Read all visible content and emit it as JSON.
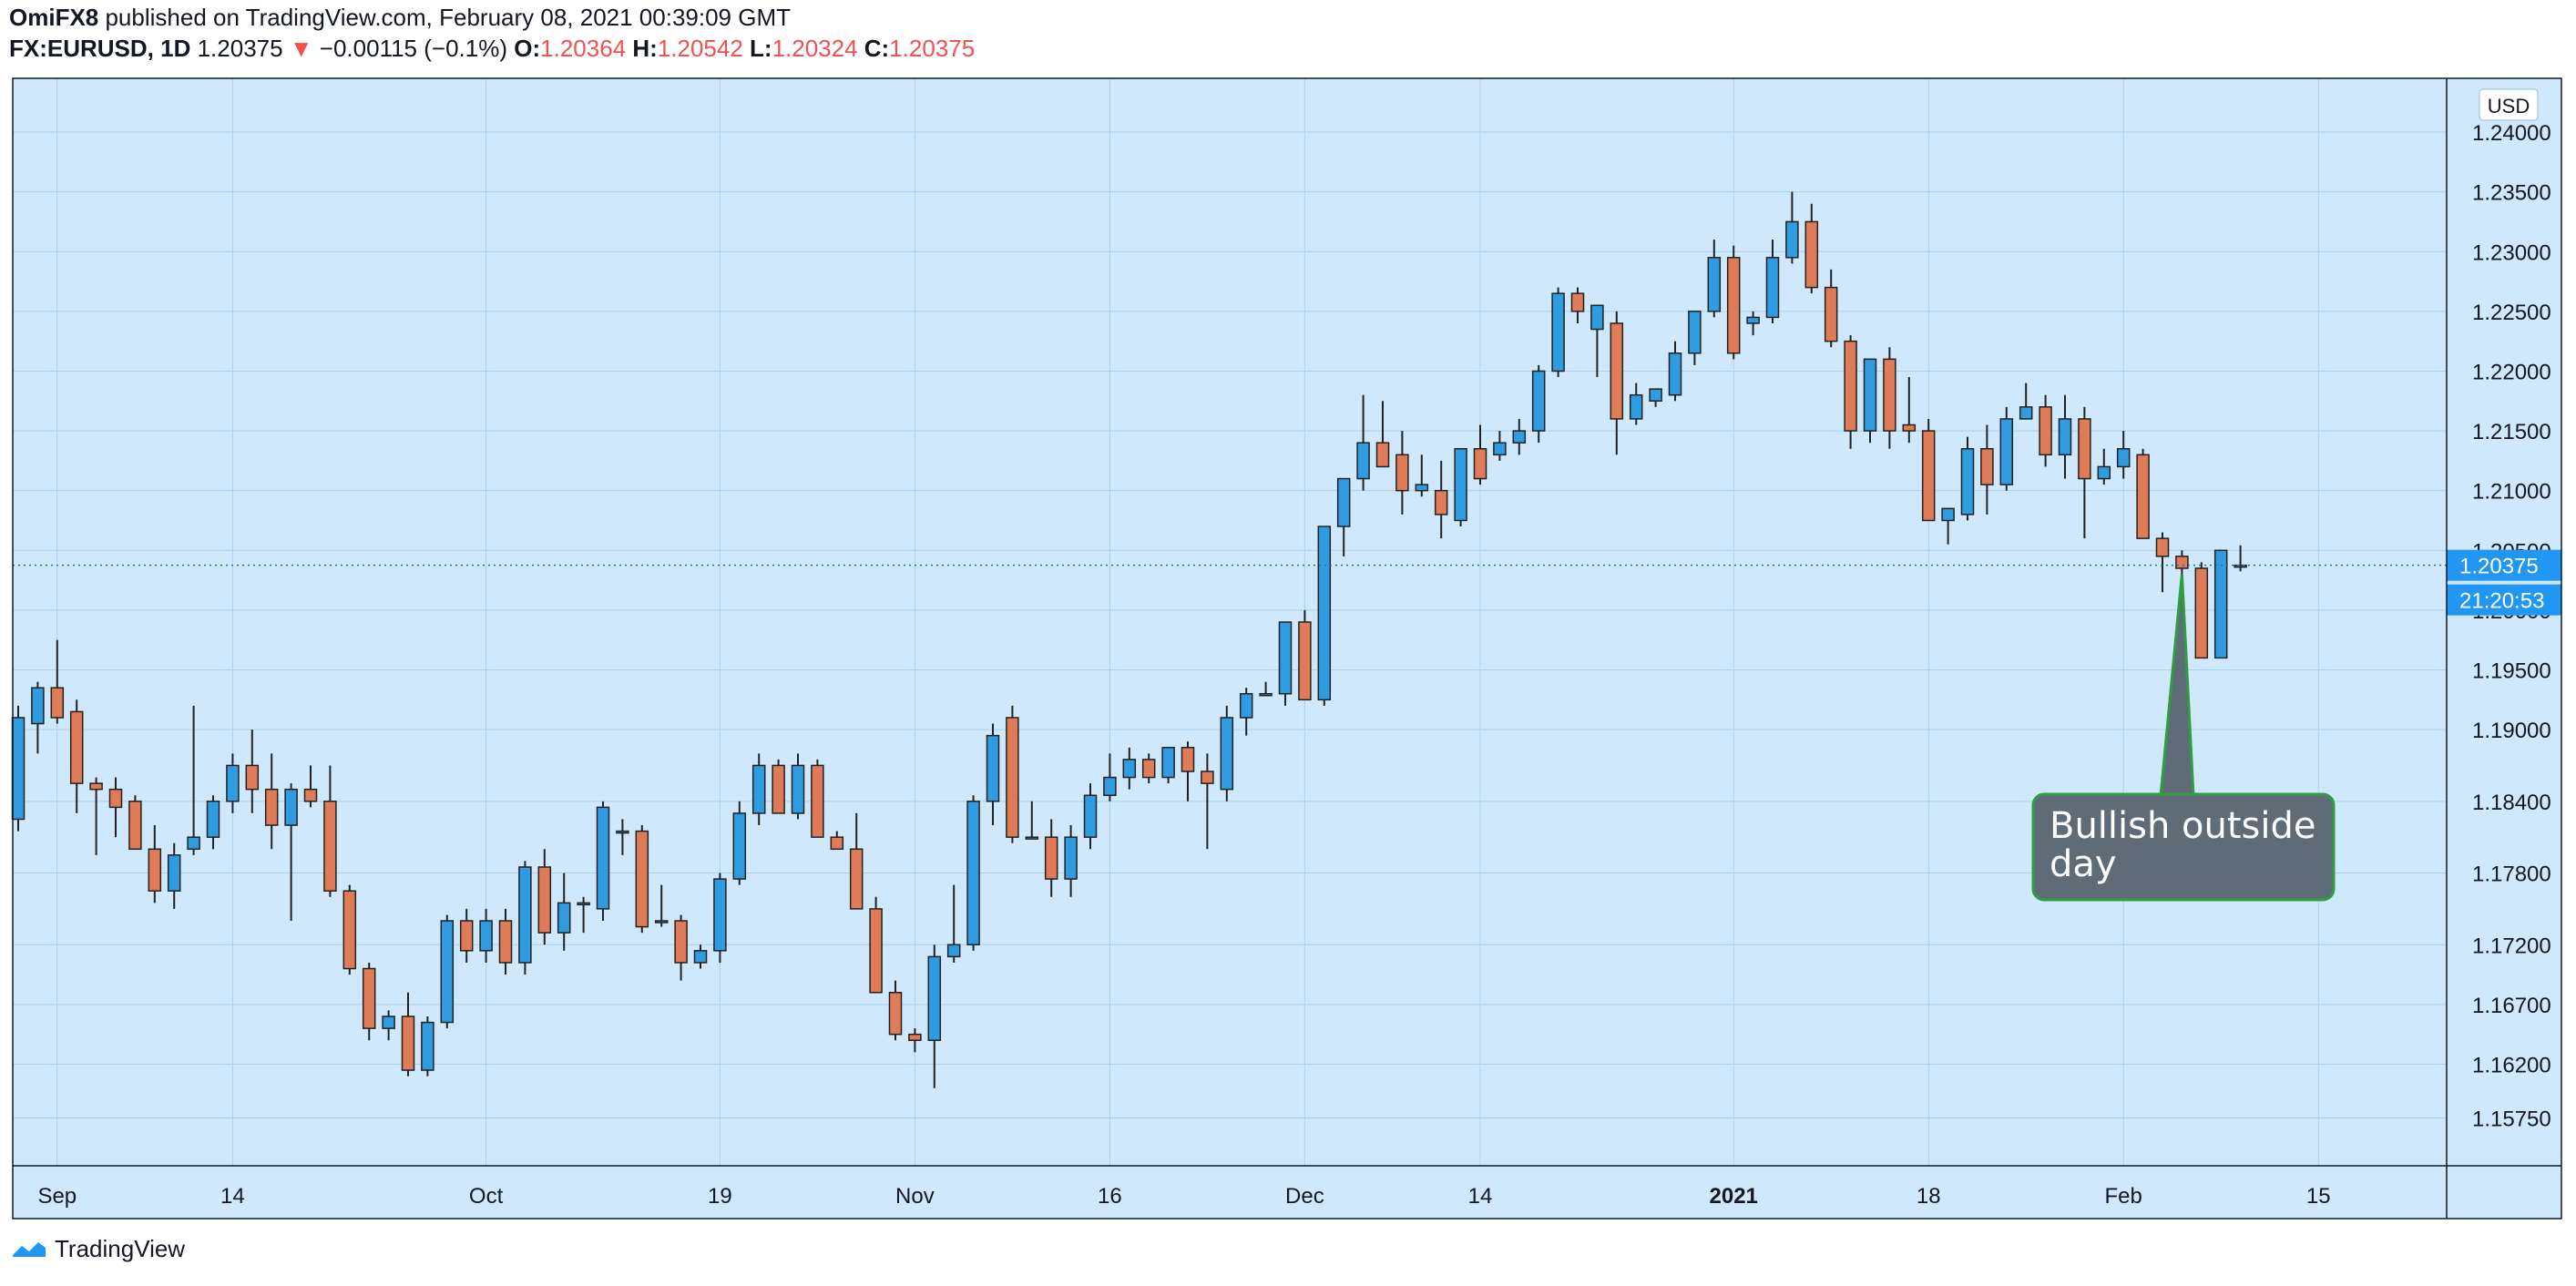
{
  "header": {
    "publisher": "OmiFX8",
    "published_text": " published on TradingView.com, February 08, 2021 00:39:09 GMT",
    "symbol": "FX:EURUSD, 1D",
    "last": "1.20375",
    "change_arrow": "▼",
    "change": "−0.00115 (−0.1%)",
    "o_label": "O:",
    "o_value": "1.20364",
    "h_label": "H:",
    "h_value": "1.20542",
    "l_label": "L:",
    "l_value": "1.20324",
    "c_label": "C:",
    "c_value": "1.20375"
  },
  "footer": {
    "brand": "TradingView",
    "logo_icon": "tradingview-logo-icon"
  },
  "colors": {
    "background": "#cfe8fc",
    "grid": "#a9d2f1",
    "up": "#2f9be0",
    "down": "#e07b57",
    "wick": "#222222",
    "price_tag": "#2196f3",
    "callout_fill": "#5f6b77",
    "callout_border": "#2e9e3e"
  },
  "chart_data": {
    "type": "candlestick",
    "title": "FX:EURUSD, 1D",
    "currency": "USD",
    "ylim": [
      1.1535,
      1.2445
    ],
    "y_ticks": [
      "1.24000",
      "1.23500",
      "1.23000",
      "1.22500",
      "1.22000",
      "1.21500",
      "1.21000",
      "1.20500",
      "1.20000",
      "1.19500",
      "1.19000",
      "1.18400",
      "1.17800",
      "1.17200",
      "1.16700",
      "1.16200",
      "1.15750"
    ],
    "x_labels": [
      {
        "label": "Sep",
        "index": 2
      },
      {
        "label": "14",
        "index": 11
      },
      {
        "label": "Oct",
        "index": 24
      },
      {
        "label": "19",
        "index": 36
      },
      {
        "label": "2021",
        "index": 88,
        "bold": true
      },
      {
        "label": "Nov",
        "index": 46
      },
      {
        "label": "16",
        "index": 56
      },
      {
        "label": "Dec",
        "index": 66
      },
      {
        "label": "14",
        "index": 75
      },
      {
        "label": "18",
        "index": 98
      },
      {
        "label": "Feb",
        "index": 108
      },
      {
        "label": "15",
        "index": 118
      }
    ],
    "current_price": "1.20375",
    "countdown": "21:20:53",
    "annotation": {
      "text_line1": "Bullish outside",
      "text_line2": "day",
      "target_index": 111
    },
    "candles": [
      [
        1.1825,
        1.192,
        1.1815,
        1.191
      ],
      [
        1.1905,
        1.194,
        1.188,
        1.1935
      ],
      [
        1.1935,
        1.1975,
        1.1905,
        1.191
      ],
      [
        1.1915,
        1.1925,
        1.183,
        1.1855
      ],
      [
        1.1855,
        1.186,
        1.1795,
        1.185
      ],
      [
        1.185,
        1.186,
        1.181,
        1.1835
      ],
      [
        1.184,
        1.1845,
        1.18,
        1.18
      ],
      [
        1.18,
        1.182,
        1.1755,
        1.1765
      ],
      [
        1.1765,
        1.1805,
        1.175,
        1.1795
      ],
      [
        1.18,
        1.192,
        1.1795,
        1.181
      ],
      [
        1.181,
        1.1845,
        1.18,
        1.184
      ],
      [
        1.184,
        1.188,
        1.183,
        1.187
      ],
      [
        1.187,
        1.19,
        1.183,
        1.185
      ],
      [
        1.185,
        1.188,
        1.18,
        1.182
      ],
      [
        1.182,
        1.1855,
        1.174,
        1.185
      ],
      [
        1.185,
        1.187,
        1.1835,
        1.184
      ],
      [
        1.184,
        1.187,
        1.176,
        1.1765
      ],
      [
        1.1765,
        1.177,
        1.1695,
        1.17
      ],
      [
        1.17,
        1.1705,
        1.164,
        1.165
      ],
      [
        1.165,
        1.1665,
        1.164,
        1.166
      ],
      [
        1.166,
        1.168,
        1.161,
        1.1615
      ],
      [
        1.1615,
        1.166,
        1.161,
        1.1655
      ],
      [
        1.1655,
        1.1745,
        1.165,
        1.174
      ],
      [
        1.174,
        1.175,
        1.1705,
        1.1715
      ],
      [
        1.1715,
        1.175,
        1.1705,
        1.174
      ],
      [
        1.174,
        1.175,
        1.1695,
        1.1705
      ],
      [
        1.1705,
        1.179,
        1.1695,
        1.1785
      ],
      [
        1.1785,
        1.18,
        1.172,
        1.173
      ],
      [
        1.173,
        1.178,
        1.1715,
        1.1755
      ],
      [
        1.1755,
        1.176,
        1.173,
        1.1755
      ],
      [
        1.175,
        1.184,
        1.174,
        1.1835
      ],
      [
        1.1815,
        1.1825,
        1.1795,
        1.1815
      ],
      [
        1.1815,
        1.182,
        1.173,
        1.1735
      ],
      [
        1.174,
        1.177,
        1.1735,
        1.174
      ],
      [
        1.174,
        1.1745,
        1.169,
        1.1705
      ],
      [
        1.1705,
        1.172,
        1.17,
        1.1715
      ],
      [
        1.1715,
        1.178,
        1.1705,
        1.1775
      ],
      [
        1.1775,
        1.184,
        1.177,
        1.183
      ],
      [
        1.183,
        1.188,
        1.182,
        1.187
      ],
      [
        1.187,
        1.1875,
        1.183,
        1.183
      ],
      [
        1.183,
        1.188,
        1.1825,
        1.187
      ],
      [
        1.187,
        1.1875,
        1.181,
        1.181
      ],
      [
        1.181,
        1.1815,
        1.18,
        1.18
      ],
      [
        1.18,
        1.183,
        1.175,
        1.175
      ],
      [
        1.175,
        1.176,
        1.168,
        1.168
      ],
      [
        1.168,
        1.169,
        1.164,
        1.1645
      ],
      [
        1.1645,
        1.165,
        1.163,
        1.164
      ],
      [
        1.164,
        1.172,
        1.16,
        1.171
      ],
      [
        1.171,
        1.177,
        1.1705,
        1.172
      ],
      [
        1.172,
        1.1845,
        1.1715,
        1.184
      ],
      [
        1.184,
        1.1905,
        1.182,
        1.1895
      ],
      [
        1.191,
        1.192,
        1.1805,
        1.181
      ],
      [
        1.181,
        1.184,
        1.181,
        1.181
      ],
      [
        1.181,
        1.1825,
        1.176,
        1.1775
      ],
      [
        1.1775,
        1.182,
        1.176,
        1.181
      ],
      [
        1.181,
        1.1855,
        1.18,
        1.1845
      ],
      [
        1.1845,
        1.188,
        1.184,
        1.186
      ],
      [
        1.186,
        1.1885,
        1.185,
        1.1875
      ],
      [
        1.1875,
        1.188,
        1.1855,
        1.186
      ],
      [
        1.186,
        1.1885,
        1.1855,
        1.1885
      ],
      [
        1.1885,
        1.189,
        1.184,
        1.1865
      ],
      [
        1.1865,
        1.188,
        1.18,
        1.1855
      ],
      [
        1.185,
        1.192,
        1.184,
        1.191
      ],
      [
        1.191,
        1.1935,
        1.1895,
        1.193
      ],
      [
        1.193,
        1.194,
        1.193,
        1.193
      ],
      [
        1.193,
        1.199,
        1.192,
        1.199
      ],
      [
        1.199,
        1.2,
        1.1925,
        1.1925
      ],
      [
        1.1925,
        1.207,
        1.192,
        1.207
      ],
      [
        1.207,
        1.211,
        1.2045,
        1.211
      ],
      [
        1.211,
        1.218,
        1.21,
        1.214
      ],
      [
        1.214,
        1.2175,
        1.212,
        1.212
      ],
      [
        1.213,
        1.215,
        1.208,
        1.21
      ],
      [
        1.21,
        1.213,
        1.2095,
        1.2105
      ],
      [
        1.21,
        1.2125,
        1.206,
        1.208
      ],
      [
        1.2075,
        1.2135,
        1.207,
        1.2135
      ],
      [
        1.2135,
        1.2155,
        1.2105,
        1.211
      ],
      [
        1.213,
        1.215,
        1.2125,
        1.214
      ],
      [
        1.214,
        1.216,
        1.213,
        1.215
      ],
      [
        1.215,
        1.2205,
        1.214,
        1.22
      ],
      [
        1.22,
        1.227,
        1.2195,
        1.2265
      ],
      [
        1.2265,
        1.227,
        1.224,
        1.225
      ],
      [
        1.2235,
        1.2255,
        1.2195,
        1.2255
      ],
      [
        1.224,
        1.225,
        1.213,
        1.216
      ],
      [
        1.216,
        1.219,
        1.2155,
        1.218
      ],
      [
        1.2175,
        1.2185,
        1.217,
        1.2185
      ],
      [
        1.218,
        1.2225,
        1.2175,
        1.2215
      ],
      [
        1.2215,
        1.225,
        1.2205,
        1.225
      ],
      [
        1.225,
        1.231,
        1.2245,
        1.2295
      ],
      [
        1.2295,
        1.2305,
        1.221,
        1.2215
      ],
      [
        1.224,
        1.225,
        1.223,
        1.2245
      ],
      [
        1.2245,
        1.231,
        1.224,
        1.2295
      ],
      [
        1.2295,
        1.235,
        1.229,
        1.2325
      ],
      [
        1.2325,
        1.234,
        1.2265,
        1.227
      ],
      [
        1.227,
        1.2285,
        1.222,
        1.2225
      ],
      [
        1.2225,
        1.223,
        1.2135,
        1.215
      ],
      [
        1.215,
        1.221,
        1.214,
        1.221
      ],
      [
        1.221,
        1.222,
        1.2135,
        1.215
      ],
      [
        1.2155,
        1.2195,
        1.214,
        1.215
      ],
      [
        1.215,
        1.216,
        1.2075,
        1.2075
      ],
      [
        1.2075,
        1.2085,
        1.2055,
        1.2085
      ],
      [
        1.208,
        1.2145,
        1.2075,
        1.2135
      ],
      [
        1.2135,
        1.2155,
        1.208,
        1.2105
      ],
      [
        1.2105,
        1.217,
        1.21,
        1.216
      ],
      [
        1.216,
        1.219,
        1.216,
        1.217
      ],
      [
        1.217,
        1.218,
        1.212,
        1.213
      ],
      [
        1.213,
        1.218,
        1.211,
        1.216
      ],
      [
        1.216,
        1.217,
        1.206,
        1.211
      ],
      [
        1.211,
        1.2135,
        1.2105,
        1.212
      ],
      [
        1.212,
        1.215,
        1.211,
        1.2135
      ],
      [
        1.213,
        1.2135,
        1.206,
        1.206
      ],
      [
        1.206,
        1.2065,
        1.2015,
        1.2045
      ],
      [
        1.2045,
        1.205,
        1.203,
        1.2035
      ],
      [
        1.2035,
        1.204,
        1.196,
        1.196
      ],
      [
        1.196,
        1.205,
        1.196,
        1.205
      ],
      [
        1.20364,
        1.20542,
        1.20324,
        1.20375
      ]
    ]
  }
}
